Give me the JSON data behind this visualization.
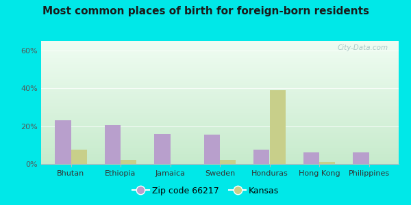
{
  "title": "Most common places of birth for foreign-born residents",
  "categories": [
    "Bhutan",
    "Ethiopia",
    "Jamaica",
    "Sweden",
    "Honduras",
    "Hong Kong",
    "Philippines"
  ],
  "zip_values": [
    23,
    20.5,
    16,
    15.5,
    7.5,
    6,
    6
  ],
  "kansas_values": [
    7.5,
    2,
    0,
    2,
    39,
    1,
    0
  ],
  "zip_color": "#b89fcc",
  "kansas_color": "#c8cf8a",
  "outer_bg": "#00e8e8",
  "plot_bg_topleft": "#c8e8c0",
  "plot_bg_topright": "#e8f5ee",
  "plot_bg_bottom": "#d0ead8",
  "ylabel_ticks": [
    "0%",
    "20%",
    "40%",
    "60%"
  ],
  "ytick_vals": [
    0,
    20,
    40,
    60
  ],
  "ylim": [
    0,
    65
  ],
  "legend_zip_label": "Zip code 66217",
  "legend_kansas_label": "Kansas",
  "watermark": "City-Data.com",
  "title_fontsize": 11,
  "tick_fontsize": 8,
  "legend_fontsize": 9,
  "bar_width": 0.32
}
